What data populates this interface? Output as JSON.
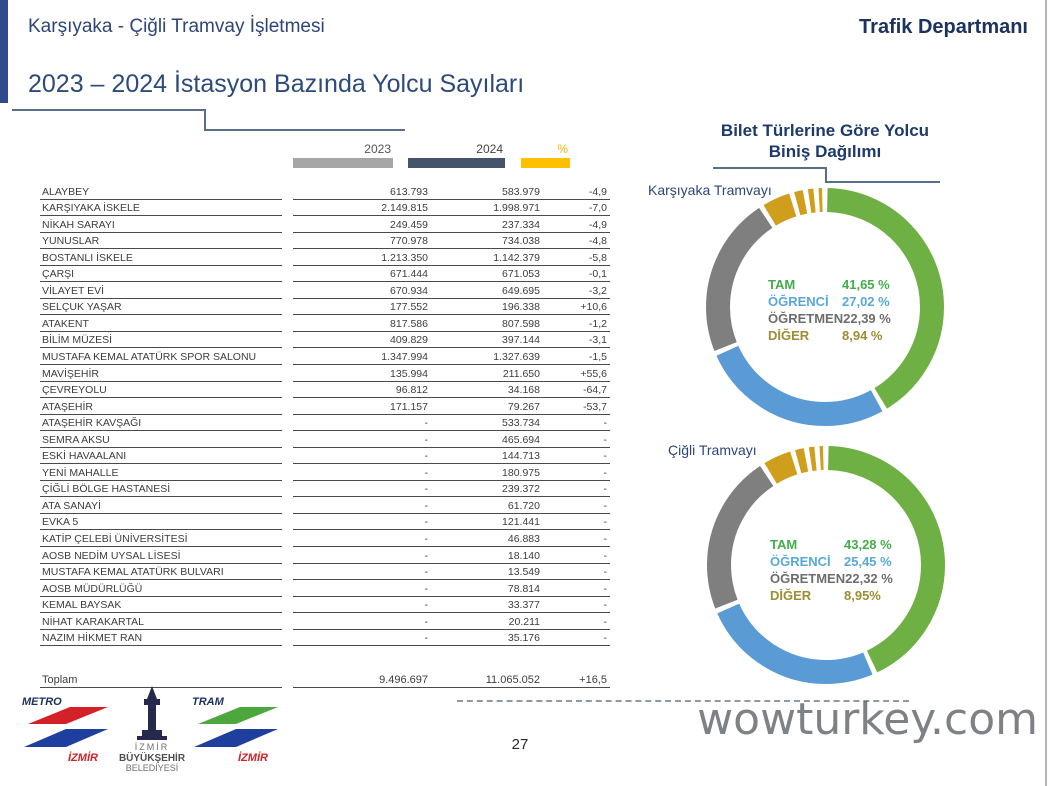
{
  "header": {
    "left_title": "Karşıyaka - Çiğli Tramvay İşletmesi",
    "right_title": "Trafik Departmanı"
  },
  "page_title": "2023 – 2024 İstasyon Bazında Yolcu Sayıları",
  "table": {
    "columns": [
      "2023",
      "2024",
      "%"
    ],
    "rows": [
      [
        "ALAYBEY",
        "613.793",
        "583.979",
        "-4,9"
      ],
      [
        "KARŞIYAKA İSKELE",
        "2.149.815",
        "1.998.971",
        "-7,0"
      ],
      [
        "NİKAH SARAYI",
        "249.459",
        "237.334",
        "-4,9"
      ],
      [
        "YUNUSLAR",
        "770.978",
        "734.038",
        "-4,8"
      ],
      [
        "BOSTANLI İSKELE",
        "1.213.350",
        "1.142.379",
        "-5,8"
      ],
      [
        "ÇARŞI",
        "671.444",
        "671.053",
        "-0,1"
      ],
      [
        "VİLAYET EVİ",
        "670.934",
        "649.695",
        "-3,2"
      ],
      [
        "SELÇUK YAŞAR",
        "177.552",
        "196.338",
        "+10,6"
      ],
      [
        "ATAKENT",
        "817.586",
        "807.598",
        "-1,2"
      ],
      [
        "BİLİM MÜZESİ",
        "409.829",
        "397.144",
        "-3,1"
      ],
      [
        "MUSTAFA KEMAL ATATÜRK SPOR SALONU",
        "1.347.994",
        "1.327.639",
        "-1,5"
      ],
      [
        "MAVİŞEHİR",
        "135.994",
        "211.650",
        "+55,6"
      ],
      [
        "ÇEVREYOLU",
        "96.812",
        "34.168",
        "-64,7"
      ],
      [
        "ATAŞEHİR",
        "171.157",
        "79.267",
        "-53,7"
      ],
      [
        "ATAŞEHİR KAVŞAĞI",
        "-",
        "533.734",
        "-"
      ],
      [
        "SEMRA AKSU",
        "-",
        "465.694",
        "-"
      ],
      [
        "ESKİ HAVAALANI",
        "-",
        "144.713",
        "-"
      ],
      [
        "YENİ MAHALLE",
        "-",
        "180.975",
        "-"
      ],
      [
        "ÇİĞLİ BÖLGE HASTANESİ",
        "-",
        "239.372",
        "-"
      ],
      [
        "ATA SANAYİ",
        "-",
        "61.720",
        "-"
      ],
      [
        "EVKA 5",
        "-",
        "121.441",
        "-"
      ],
      [
        "KATİP ÇELEBİ ÜNİVERSİTESİ",
        "-",
        "46.883",
        "-"
      ],
      [
        "AOSB NEDİM UYSAL LİSESİ",
        "-",
        "18.140",
        "-"
      ],
      [
        "MUSTAFA KEMAL ATATÜRK BULVARI",
        "-",
        "13.549",
        "-"
      ],
      [
        "AOSB MÜDÜRLÜĞÜ",
        "-",
        "78.814",
        "-"
      ],
      [
        "KEMAL BAYSAK",
        "-",
        "33.377",
        "-"
      ],
      [
        "NİHAT KARAKARTAL",
        "-",
        "20.211",
        "-"
      ],
      [
        "NAZIM HİKMET RAN",
        "-",
        "35.176",
        "-"
      ]
    ],
    "total": {
      "label": "Toplam",
      "y2023": "9.496.697",
      "y2024": "11.065.052",
      "pct": "+16,5"
    }
  },
  "charts_title": "Bilet Türlerine Göre Yolcu Biniş Dağılımı",
  "chart_data": [
    {
      "type": "pie",
      "donut": true,
      "title": "Bilet Türlerine Göre Yolcu Biniş Dağılımı",
      "subtitle": "Karşıyaka Tramvayı",
      "categories": [
        "TAM",
        "ÖĞRENCİ",
        "ÖĞRETMEN",
        "DİĞER"
      ],
      "values": [
        41.65,
        27.02,
        22.39,
        8.94
      ],
      "value_labels": [
        "41,65 %",
        "27,02 %",
        "22,39 %",
        "8,94 %"
      ],
      "colors": [
        "#6fb044",
        "#5b9bd5",
        "#7f7f7f",
        "#cf9e1d"
      ],
      "text_colors": [
        "#44ad4b",
        "#58a8d8",
        "#6d6d6d",
        "#9d8d33"
      ],
      "legend_position": "center"
    },
    {
      "type": "pie",
      "donut": true,
      "title": "Bilet Türlerine Göre Yolcu Biniş Dağılımı",
      "subtitle": "Çiğli Tramvayı",
      "categories": [
        "TAM",
        "ÖĞRENCİ",
        "ÖĞRETMEN",
        "DİĞER"
      ],
      "values": [
        43.28,
        25.45,
        22.32,
        8.95
      ],
      "value_labels": [
        "43,28 %",
        "25,45 %",
        "22,32 %",
        "8,95%"
      ],
      "colors": [
        "#6fb044",
        "#5b9bd5",
        "#7f7f7f",
        "#cf9e1d"
      ],
      "text_colors": [
        "#44ad4b",
        "#58a8d8",
        "#6d6d6d",
        "#9d8d33"
      ],
      "legend_position": "center"
    }
  ],
  "footer": {
    "page_number": "27",
    "watermark": "wowturkey.com",
    "logos": {
      "metro": {
        "title": "METRO",
        "subtitle": "İZMİR"
      },
      "municipality": {
        "lines": [
          "İZMİR",
          "BÜYÜKŞEHİR",
          "BELEDİYESİ"
        ]
      },
      "tram": {
        "title": "TRAM",
        "subtitle": "İZMİR"
      }
    }
  }
}
